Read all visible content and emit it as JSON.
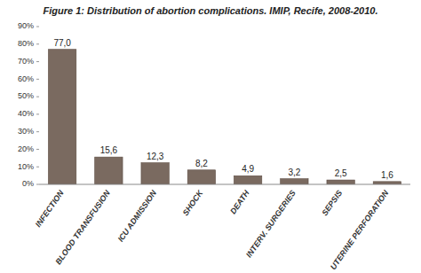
{
  "chart_data": {
    "type": "bar",
    "title": "Figure 1: Distribution of abortion complications. IMIP, Recife, 2008-2010.",
    "categories": [
      "INFECTION",
      "BLOOD TRANSFUSION",
      "ICU ADMISSION",
      "SHOCK",
      "DEATH",
      "INTERV. SURGERIES",
      "SEPSIS",
      "UTERINE PERFORATION"
    ],
    "values": [
      77.0,
      15.6,
      12.3,
      8.2,
      4.9,
      3.2,
      2.5,
      1.6
    ],
    "value_labels": [
      "77,0",
      "15,6",
      "12,3",
      "8,2",
      "4,9",
      "3,2",
      "2,5",
      "1,6"
    ],
    "data_labels": true,
    "color": "#7a6a60",
    "ylim": [
      0,
      90
    ],
    "yticks": [
      {
        "value": 0,
        "label": "0%"
      },
      {
        "value": 10,
        "label": "10%"
      },
      {
        "value": 20,
        "label": "20%"
      },
      {
        "value": 30,
        "label": "30%"
      },
      {
        "value": 40,
        "label": "40%"
      },
      {
        "value": 50,
        "label": "50%"
      },
      {
        "value": 60,
        "label": "60%"
      },
      {
        "value": 70,
        "label": "70%"
      },
      {
        "value": 80,
        "label": "80%"
      },
      {
        "value": 90,
        "label": "90%"
      }
    ],
    "grid": false
  }
}
